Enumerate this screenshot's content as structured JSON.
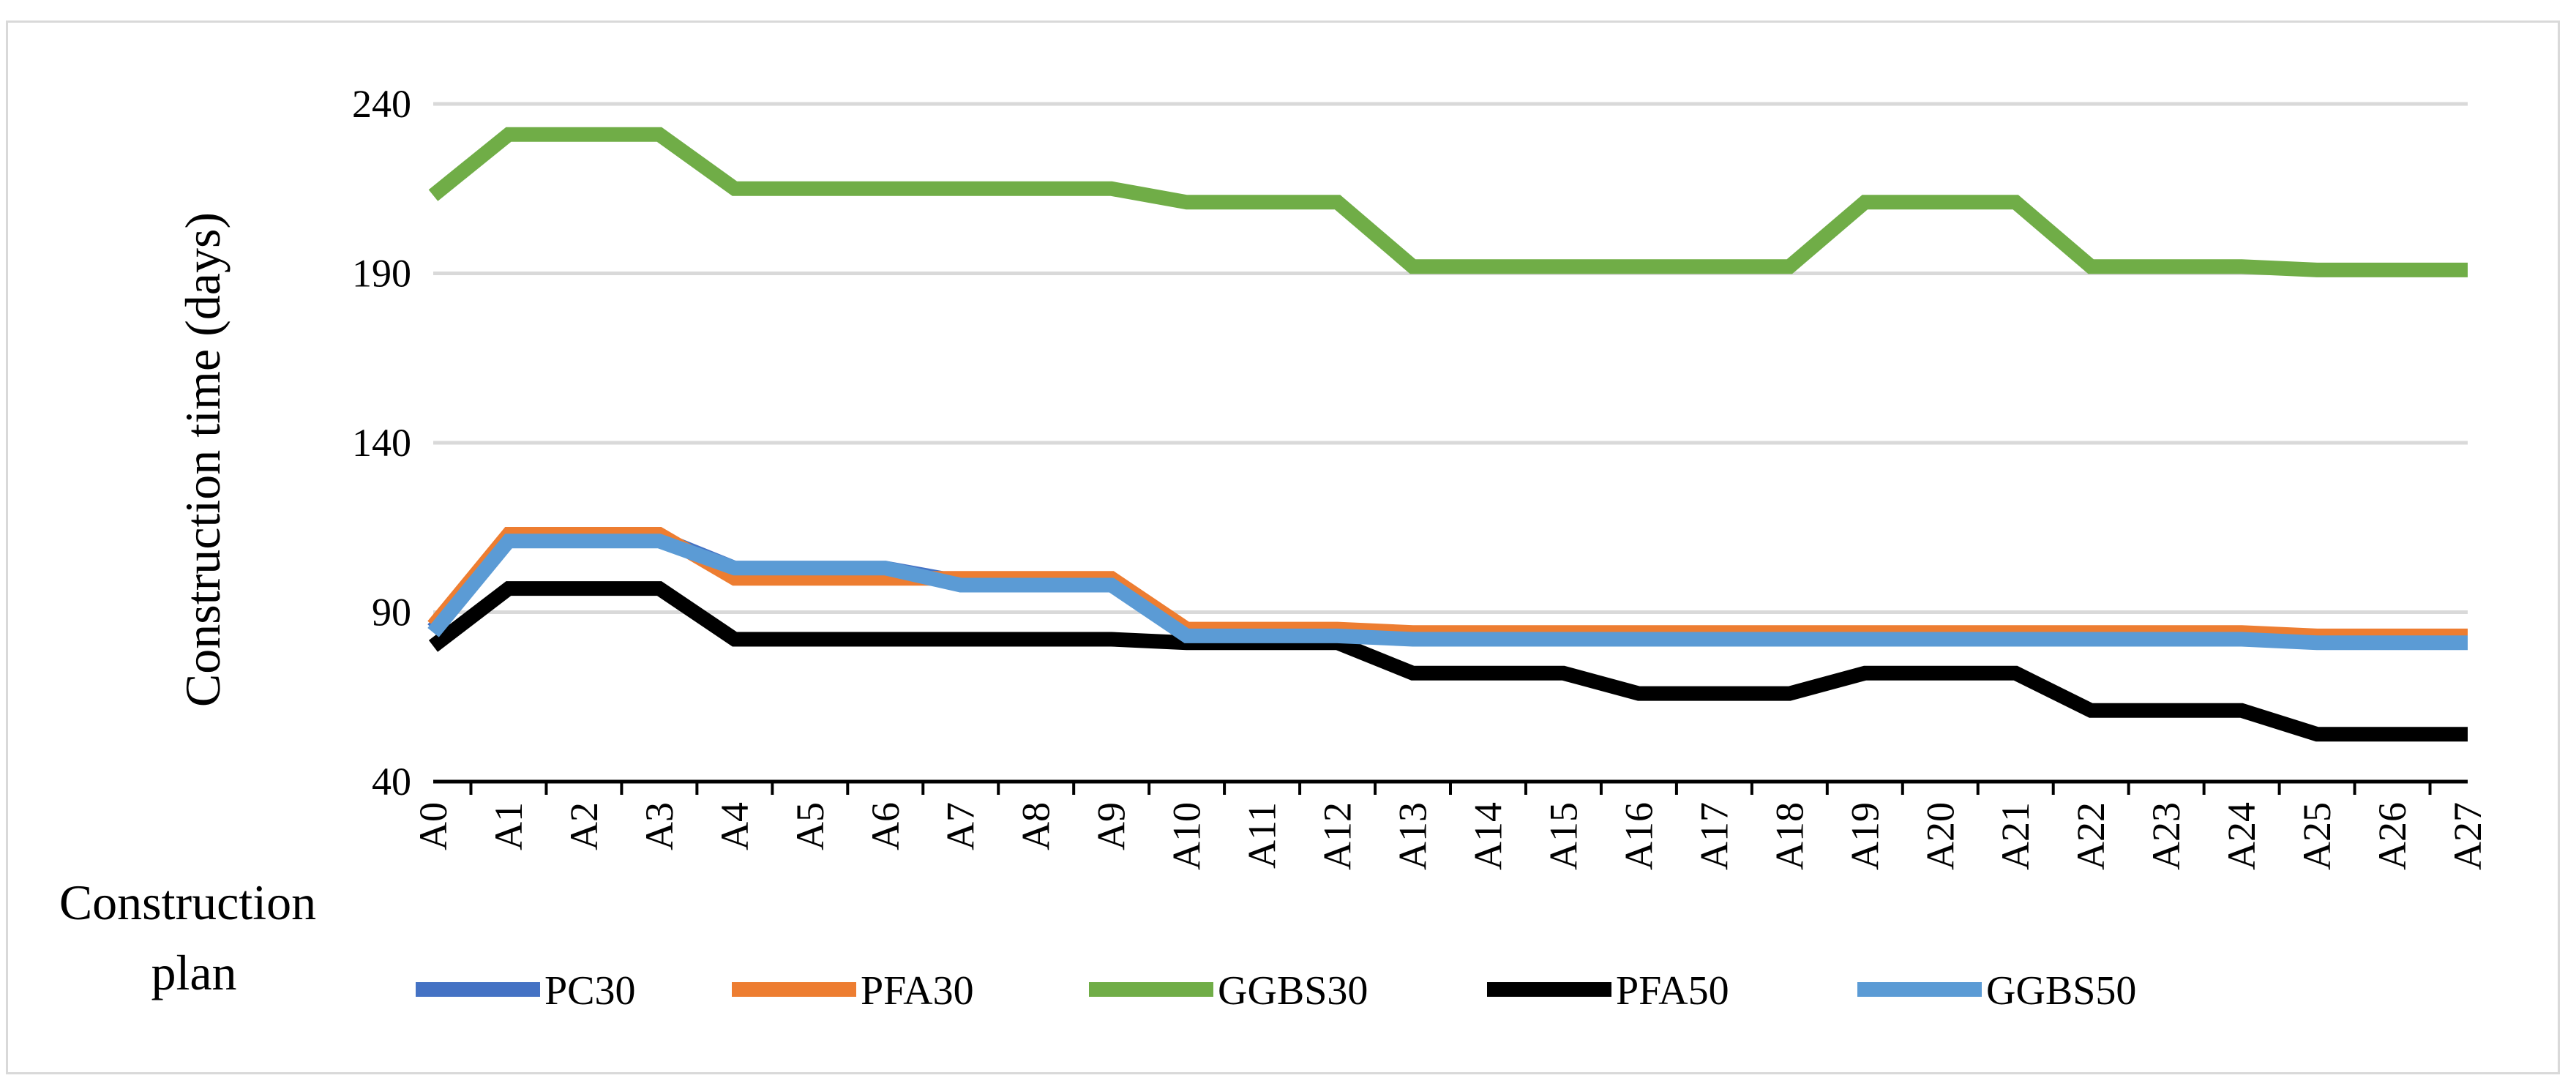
{
  "chart_data": {
    "type": "line",
    "title": "",
    "xlabel": "Construction plan",
    "ylabel": "Construction time (days)",
    "ylim": [
      40,
      240
    ],
    "yticks": [
      40,
      90,
      140,
      190,
      240
    ],
    "grid": true,
    "legend_position": "bottom",
    "categories": [
      "A0",
      "A1",
      "A2",
      "A3",
      "A4",
      "A5",
      "A6",
      "A7",
      "A8",
      "A9",
      "A10",
      "A11",
      "A12",
      "A13",
      "A14",
      "A15",
      "A16",
      "A17",
      "A18",
      "A19",
      "A20",
      "A21",
      "A22",
      "A23",
      "A24",
      "A25",
      "A26",
      "A27"
    ],
    "series": [
      {
        "name": "PC30",
        "color": "#4472c4",
        "values": [
          85,
          112,
          112,
          112,
          103,
          103,
          103,
          99,
          99,
          99,
          84,
          84,
          84,
          83,
          83,
          83,
          83,
          83,
          83,
          83,
          83,
          83,
          83,
          83,
          83,
          82,
          82,
          82
        ]
      },
      {
        "name": "PFA30",
        "color": "#ed7d31",
        "values": [
          86,
          113,
          113,
          113,
          100,
          100,
          100,
          100,
          100,
          100,
          85,
          85,
          85,
          84,
          84,
          84,
          84,
          84,
          84,
          84,
          84,
          84,
          84,
          84,
          84,
          83,
          83,
          83
        ]
      },
      {
        "name": "GGBS30",
        "color": "#70ad47",
        "values": [
          213,
          231,
          231,
          231,
          215,
          215,
          215,
          215,
          215,
          215,
          211,
          211,
          211,
          192,
          192,
          192,
          192,
          192,
          192,
          211,
          211,
          211,
          192,
          192,
          192,
          191,
          191,
          191
        ]
      },
      {
        "name": "PFA50",
        "color": "#000000",
        "values": [
          80,
          97,
          97,
          97,
          82,
          82,
          82,
          82,
          82,
          82,
          81,
          81,
          81,
          72,
          72,
          72,
          66,
          66,
          66,
          72,
          72,
          72,
          61,
          61,
          61,
          54,
          54,
          54
        ]
      },
      {
        "name": "GGBS50",
        "color": "#5b9bd5",
        "values": [
          84,
          111,
          111,
          111,
          103,
          103,
          103,
          98,
          98,
          98,
          83,
          83,
          83,
          82,
          82,
          82,
          82,
          82,
          82,
          82,
          82,
          82,
          82,
          82,
          82,
          81,
          81,
          81
        ]
      }
    ]
  }
}
